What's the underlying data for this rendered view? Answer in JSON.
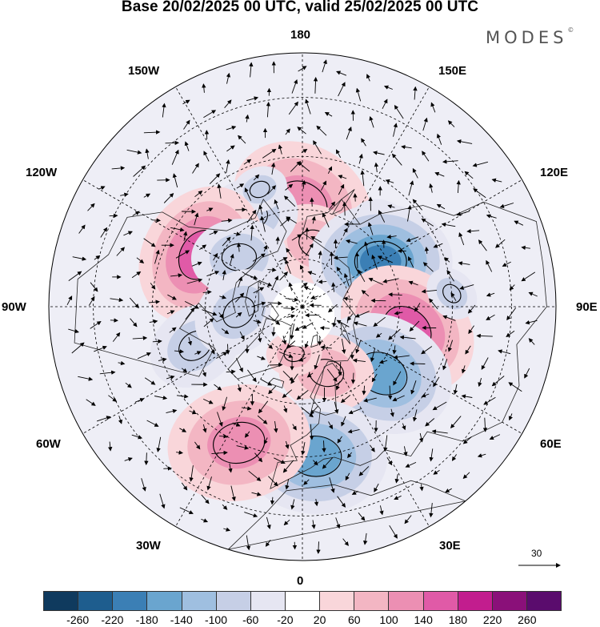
{
  "title": "Base 20/02/2025 00 UTC, valid 25/02/2025 00 UTC",
  "brand": {
    "name": "MODES",
    "mark": "©"
  },
  "longitude_labels": {
    "top": "180",
    "bottom": "0",
    "left": "90W",
    "right": "90E",
    "upper_left_1": "150W",
    "upper_left_2": "120W",
    "upper_right_1": "150E",
    "upper_right_2": "120E",
    "lower_left_1": "60W",
    "lower_left_2": "30W",
    "lower_right_1": "60E",
    "lower_right_2": "30E"
  },
  "vector_scale": {
    "label": "30"
  },
  "colorbar": {
    "labels": [
      "-260",
      "-220",
      "-180",
      "-140",
      "-100",
      "-60",
      "-20",
      "20",
      "60",
      "100",
      "140",
      "180",
      "220",
      "260"
    ],
    "colors": [
      "#0f3a5e",
      "#1e5d8e",
      "#3b7fb5",
      "#6aa5cf",
      "#9fbfe0",
      "#c6cfe6",
      "#e6e6f2",
      "#ffffff",
      "#f9d6da",
      "#f3b6c3",
      "#ec8fb3",
      "#e05aa7",
      "#c21d8e",
      "#8a1079",
      "#5a0c6d"
    ]
  },
  "colors": {
    "land_outline": "#222222",
    "grid": "#000000",
    "arrows": "#000000"
  },
  "anomaly_patches": [
    {
      "lon": 180,
      "lat": 58,
      "value": 110,
      "r": "large"
    },
    {
      "lon": 168,
      "lat": 70,
      "value": 60,
      "r": "medium"
    },
    {
      "lon": -150,
      "lat": 58,
      "value": -90,
      "r": "medium"
    },
    {
      "lon": -160,
      "lat": 52,
      "value": -60,
      "r": "small"
    },
    {
      "lon": -117,
      "lat": 55,
      "value": 150,
      "r": "large"
    },
    {
      "lon": -128,
      "lat": 65,
      "value": -60,
      "r": "medium"
    },
    {
      "lon": 138,
      "lat": 55,
      "value": -60,
      "r": "small"
    },
    {
      "lon": 120,
      "lat": 62,
      "value": -200,
      "r": "large"
    },
    {
      "lon": 78,
      "lat": 57,
      "value": 170,
      "r": "large"
    },
    {
      "lon": 50,
      "lat": 58,
      "value": -170,
      "r": "large"
    },
    {
      "lon": 20,
      "lat": 68,
      "value": 80,
      "r": "medium"
    },
    {
      "lon": 5,
      "lat": 45,
      "value": -140,
      "r": "large"
    },
    {
      "lon": -25,
      "lat": 45,
      "value": 100,
      "r": "large"
    },
    {
      "lon": -70,
      "lat": 55,
      "value": -80,
      "r": "medium"
    },
    {
      "lon": -10,
      "lat": 75,
      "value": 60,
      "r": "small"
    },
    {
      "lon": -85,
      "lat": 70,
      "value": -60,
      "r": "medium"
    },
    {
      "lon": 95,
      "lat": 45,
      "value": -60,
      "r": "small"
    }
  ]
}
